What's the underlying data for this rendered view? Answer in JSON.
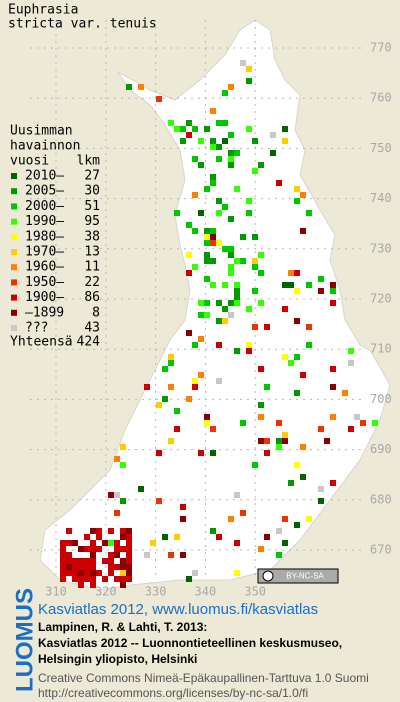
{
  "title": [
    "Euphrasia",
    "stricta var. tenuis"
  ],
  "legend": {
    "heading": [
      "Uusimman",
      "havainnon",
      "vuosi"
    ],
    "count_heading": "lkm",
    "rows": [
      {
        "label": "2010–",
        "count": 27,
        "color": "#006400"
      },
      {
        "label": "2005–",
        "count": 30,
        "color": "#009a00"
      },
      {
        "label": "2000–",
        "count": 51,
        "color": "#00c800"
      },
      {
        "label": "1990–",
        "count": 95,
        "color": "#33ff00"
      },
      {
        "label": "1980–",
        "count": 38,
        "color": "#ffff00"
      },
      {
        "label": "1970–",
        "count": 13,
        "color": "#ffcc00"
      },
      {
        "label": "1960–",
        "count": 11,
        "color": "#ff7f00"
      },
      {
        "label": "1950–",
        "count": 22,
        "color": "#ee3300"
      },
      {
        "label": "1900–",
        "count": 86,
        "color": "#cc0000"
      },
      {
        "label": "–1899",
        "count": 8,
        "color": "#880000"
      },
      {
        "label": "???",
        "count": 43,
        "color": "#c8c8c8"
      }
    ],
    "total_label": "Yhteensä",
    "total": 424
  },
  "map": {
    "north_ticks": [
      770,
      760,
      750,
      740,
      730,
      720,
      710,
      700,
      690,
      680,
      670
    ],
    "east_ticks": [
      310,
      320,
      330,
      340,
      350
    ],
    "license_badge": "BY-NC-SA"
  },
  "footer": {
    "logo": "LUOMUS",
    "link": "Kasviatlas 2012, www.luomus.fi/kasviatlas",
    "citation": [
      "Lampinen, R. & Lahti, T. 2013:",
      "Kasviatlas 2012 -- Luonnontieteellinen keskusmuseo,",
      "Helsingin yliopisto, Helsinki"
    ],
    "license": [
      "Creative Commons Nimeä-Epäkaupallinen-Tarttuva 1.0 Suomi",
      "http://creativecommons.org/licenses/by-nc-sa/1.0/fi"
    ]
  }
}
